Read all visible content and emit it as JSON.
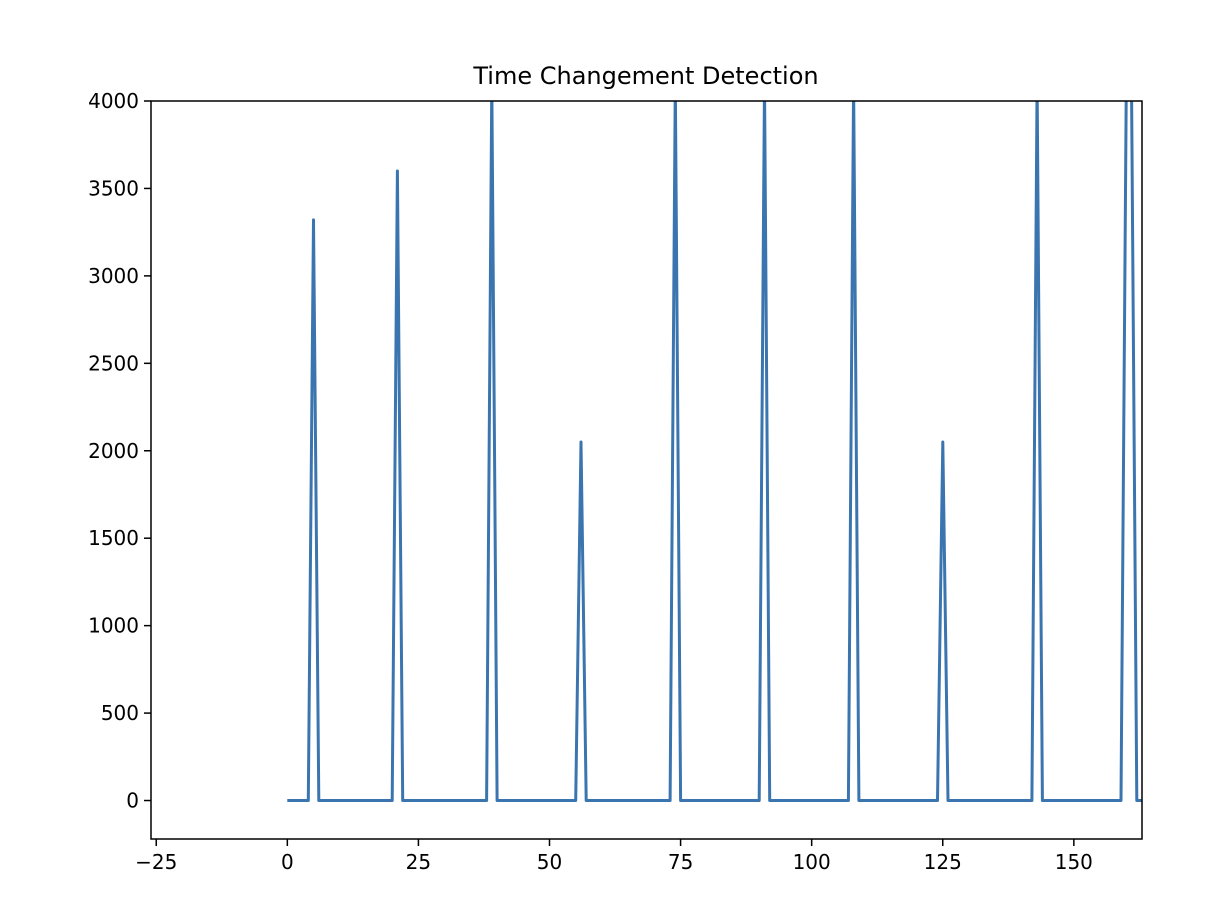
{
  "chart_data": {
    "type": "line",
    "title": "Time Changement Detection",
    "xlabel": "",
    "ylabel": "",
    "xlim": [
      -26,
      163
    ],
    "ylim": [
      -220,
      4000
    ],
    "x_ticks": [
      -25,
      0,
      25,
      50,
      75,
      100,
      125,
      150
    ],
    "x_tick_labels": [
      "−25",
      "0",
      "25",
      "50",
      "75",
      "100",
      "125",
      "150"
    ],
    "y_ticks": [
      0,
      500,
      1000,
      1500,
      2000,
      2500,
      3000,
      3500,
      4000
    ],
    "y_tick_labels": [
      "0",
      "500",
      "1000",
      "1500",
      "2000",
      "2500",
      "3000",
      "3500",
      "4000"
    ],
    "grid": false,
    "legend": "none",
    "color": "#3b75af",
    "series": [
      {
        "x": [
          0,
          4,
          5,
          6,
          20,
          21,
          22,
          38,
          39,
          40,
          55,
          56,
          57,
          73,
          74,
          75,
          90,
          91,
          92,
          107,
          108,
          109,
          124,
          125,
          126,
          142,
          143,
          144,
          159,
          160,
          161,
          162,
          163
        ],
        "values": [
          0,
          0,
          3320,
          0,
          0,
          3600,
          0,
          0,
          4100,
          0,
          0,
          2050,
          0,
          0,
          4100,
          0,
          0,
          4100,
          0,
          0,
          4100,
          0,
          0,
          2050,
          0,
          0,
          4100,
          0,
          0,
          4100,
          4100,
          0,
          0
        ]
      }
    ]
  }
}
